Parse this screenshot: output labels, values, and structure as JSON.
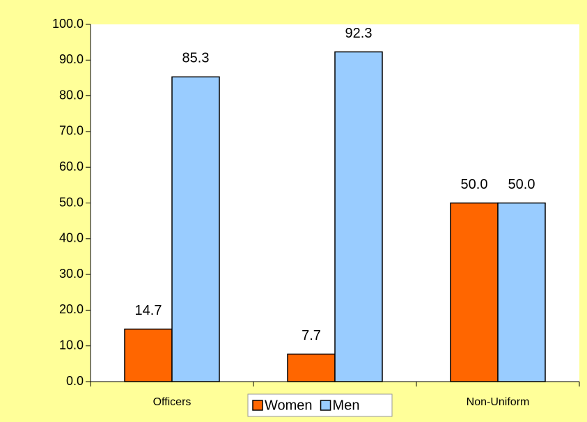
{
  "chart_data": {
    "type": "bar",
    "categories": [
      "Officers",
      null,
      "Non-Uniform"
    ],
    "series": [
      {
        "name": "Women",
        "color": "#ff6600",
        "values": [
          14.7,
          7.7,
          50
        ],
        "value_labels": [
          "14.7",
          "7.7",
          "50.0"
        ]
      },
      {
        "name": "Men",
        "color": "#99ccff",
        "values": [
          85.3,
          92.3,
          50
        ],
        "value_labels": [
          "85.3",
          "92.3",
          "50.0"
        ]
      }
    ],
    "ylim": [
      0,
      100
    ],
    "yticks": [
      {
        "value": 0,
        "label": "0.0"
      },
      {
        "value": 10,
        "label": "10.0"
      },
      {
        "value": 20,
        "label": "20.0"
      },
      {
        "value": 30,
        "label": "30.0"
      },
      {
        "value": 40,
        "label": "40.0"
      },
      {
        "value": 50,
        "label": "50.0"
      },
      {
        "value": 60,
        "label": "60.0"
      },
      {
        "value": 70,
        "label": "70.0"
      },
      {
        "value": 80,
        "label": "80.0"
      },
      {
        "value": 90,
        "label": "90.0"
      },
      {
        "value": 100,
        "label": "100.0"
      }
    ],
    "legend": "bottom"
  }
}
